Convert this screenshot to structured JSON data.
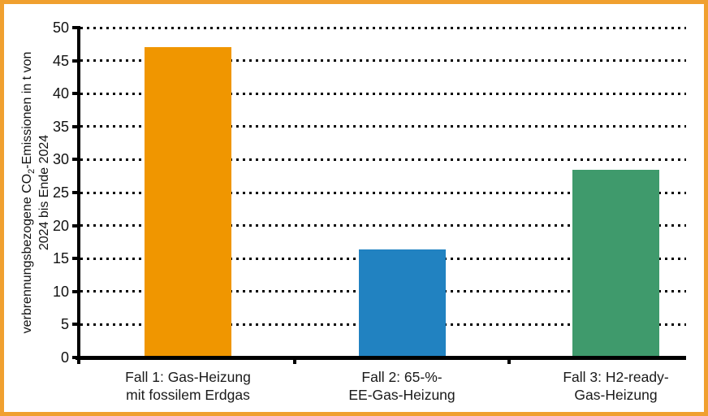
{
  "frame": {
    "border_color": "#F0A02F",
    "background": "#FFFFFF"
  },
  "chart_data": {
    "type": "bar",
    "title": "",
    "ylabel": "verbrennungsbezogene CO₂-Emissionen in t von 2024 bis Ende 2024",
    "ylabel_parts": {
      "line1_pre": "verbrennungsbezogene CO",
      "line1_sub": "2",
      "line1_post": "-Emissionen in t von",
      "line2": "2024 bis Ende 2024"
    },
    "xlabel": "",
    "categories": [
      {
        "line1": "Fall 1: Gas-Heizung",
        "line2": "mit fossilem Erdgas"
      },
      {
        "line1": "Fall 2: 65-%-",
        "line2": "EE-Gas-Heizung"
      },
      {
        "line1": "Fall 3: H2-ready-",
        "line2": "Gas-Heizung"
      }
    ],
    "values": [
      47,
      16.4,
      28.4
    ],
    "bar_colors": [
      "#F09600",
      "#2182C1",
      "#3F9A6C"
    ],
    "ylim": [
      0,
      50
    ],
    "yticks": [
      0,
      5,
      10,
      15,
      20,
      25,
      30,
      35,
      40,
      45,
      50
    ],
    "grid": "dotted-horizontal-black",
    "legend_position": "none"
  }
}
